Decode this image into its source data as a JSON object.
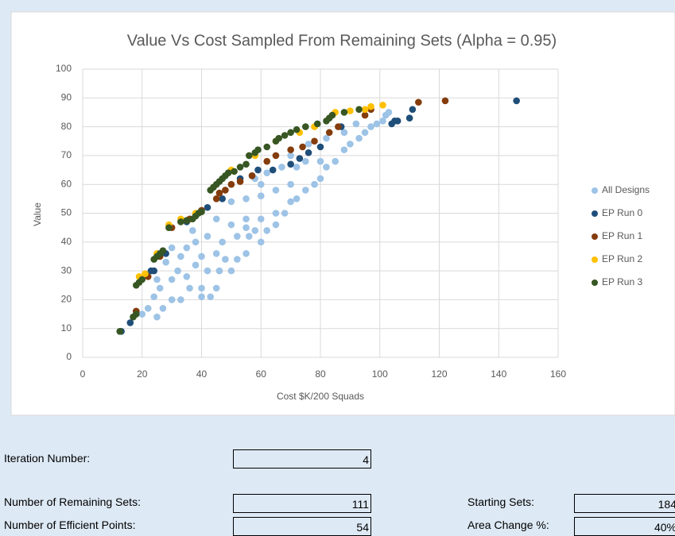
{
  "chart_data": {
    "type": "scatter",
    "title": "Value Vs Cost Sampled From Remaining Sets (Alpha = 0.95)",
    "x_label": "Cost $K/200 Squads",
    "y_label": "Value",
    "xlim": [
      0,
      160
    ],
    "xticks": [
      0,
      20,
      40,
      60,
      80,
      100,
      120,
      140,
      160
    ],
    "ylim": [
      0,
      100
    ],
    "yticks": [
      0,
      10,
      20,
      30,
      40,
      50,
      60,
      70,
      80,
      90,
      100
    ],
    "grid": true,
    "legend": "right",
    "series": [
      {
        "name": "All Designs",
        "color": "#9dc3e6",
        "x": [
          17,
          20,
          22,
          25,
          27,
          24,
          26,
          30,
          33,
          36,
          40,
          43,
          40,
          45,
          30,
          32,
          35,
          38,
          42,
          46,
          50,
          35,
          40,
          45,
          48,
          52,
          55,
          37,
          42,
          47,
          52,
          56,
          58,
          62,
          65,
          45,
          50,
          55,
          60,
          65,
          68,
          70,
          72,
          50,
          55,
          60,
          65,
          70,
          75,
          78,
          80,
          58,
          62,
          67,
          72,
          75,
          80,
          82,
          85,
          88,
          90,
          93,
          95,
          97,
          99,
          101,
          102,
          103,
          70,
          76,
          82,
          88,
          92,
          60,
          28,
          33,
          38,
          30,
          60,
          55,
          25
        ],
        "values": [
          14,
          15,
          17,
          14,
          17,
          21,
          24,
          20,
          20,
          24,
          21,
          21,
          24,
          24,
          27,
          30,
          28,
          32,
          30,
          30,
          30,
          38,
          35,
          36,
          34,
          34,
          36,
          44,
          42,
          40,
          42,
          42,
          44,
          44,
          46,
          48,
          46,
          48,
          48,
          50,
          50,
          54,
          55,
          54,
          55,
          56,
          58,
          60,
          58,
          60,
          62,
          62,
          64,
          66,
          66,
          68,
          68,
          66,
          68,
          72,
          74,
          76,
          78,
          80,
          81,
          82,
          84,
          85,
          70,
          74,
          76,
          78,
          81,
          60,
          33,
          35,
          40,
          38,
          40,
          45,
          27
        ]
      },
      {
        "name": "EP Run 0",
        "color": "#1f4e79",
        "x": [
          13,
          16,
          18,
          23,
          24,
          28,
          35,
          42,
          47,
          53,
          57,
          59,
          64,
          70,
          73,
          76,
          80,
          87,
          104,
          105,
          106,
          110,
          111,
          146
        ],
        "values": [
          9,
          12,
          16,
          30,
          30,
          36,
          47,
          52,
          55,
          62,
          63,
          65,
          65,
          67,
          69,
          71,
          73,
          80,
          81,
          82,
          82,
          83,
          86,
          89
        ]
      },
      {
        "name": "EP Run 1",
        "color": "#843c0c",
        "x": [
          18,
          22,
          26,
          30,
          36,
          40,
          45,
          46,
          48,
          50,
          53,
          57,
          62,
          65,
          70,
          74,
          78,
          83,
          86,
          95,
          97,
          113,
          122
        ],
        "values": [
          16,
          28,
          35,
          45,
          48,
          51,
          55,
          57,
          58,
          60,
          61,
          63,
          68,
          70,
          72,
          73,
          75,
          78,
          80,
          84,
          86,
          88.5,
          89
        ]
      },
      {
        "name": "EP Run 2",
        "color": "#ffc000",
        "x": [
          19,
          21,
          25,
          29,
          33,
          38,
          44,
          50,
          58,
          65,
          73,
          78,
          85,
          90,
          95,
          97,
          101
        ],
        "values": [
          28,
          29,
          36,
          46,
          48,
          50,
          59,
          65,
          70,
          75,
          78,
          80,
          85,
          85.5,
          86,
          87,
          87.5
        ]
      },
      {
        "name": "EP Run 3",
        "color": "#375623",
        "x": [
          12.5,
          17,
          18,
          18,
          19,
          20,
          24,
          25,
          26,
          27,
          29,
          33,
          35,
          37,
          38,
          39,
          40,
          43,
          44,
          45,
          46,
          47,
          48,
          49,
          51,
          53,
          55,
          56,
          58,
          59,
          62,
          65,
          66,
          68,
          70,
          72,
          75,
          79,
          82,
          83,
          84,
          88,
          93
        ],
        "values": [
          9,
          14,
          15,
          25,
          26,
          27,
          34,
          35,
          36,
          37,
          45,
          47,
          47.5,
          48,
          49,
          50,
          50.5,
          58,
          59,
          60,
          61,
          62,
          63,
          64,
          64.5,
          66,
          67,
          70,
          71,
          72,
          73,
          75,
          76,
          77,
          78,
          79,
          80,
          81,
          82,
          83,
          84,
          85,
          86
        ]
      }
    ]
  },
  "fields": [
    {
      "label": "Iteration Number:",
      "value": 4
    },
    {
      "label": "Number of Remaining Sets:",
      "value": 111
    },
    {
      "label": "Number of Efficient Points:",
      "value": 54
    },
    {
      "label": "Starting Sets:",
      "value": 184
    },
    {
      "label": "Area Change %:",
      "value": "40%"
    }
  ]
}
